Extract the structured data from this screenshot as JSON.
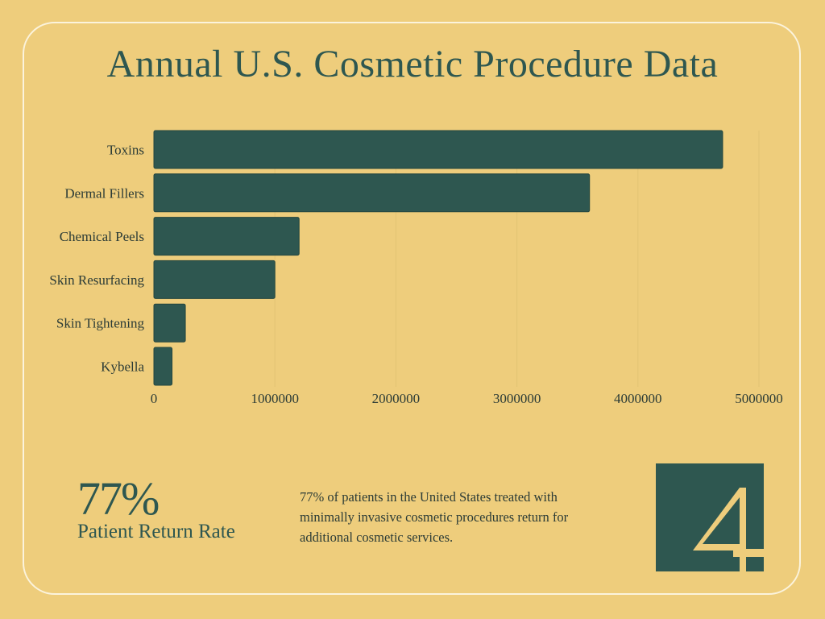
{
  "title": "Annual U.S. Cosmetic Procedure Data",
  "chart_data": {
    "type": "bar",
    "orientation": "horizontal",
    "categories": [
      "Toxins",
      "Dermal Fillers",
      "Chemical Peels",
      "Skin Resurfacing",
      "Skin Tightening",
      "Kybella"
    ],
    "values": [
      4700000,
      3600000,
      1200000,
      1000000,
      260000,
      150000
    ],
    "xlim": [
      0,
      5000000
    ],
    "xticks": [
      "0",
      "1000000",
      "2000000",
      "3000000",
      "4000000",
      "5000000"
    ],
    "grid": true,
    "bar_color": "#2e5750"
  },
  "stat": {
    "value": "77%",
    "label": "Patient Return Rate"
  },
  "description": "77% of patients in the United States treated with minimally invasive cosmetic procedures return for additional cosmetic services.",
  "logo": {
    "text": "4"
  },
  "colors": {
    "background": "#eecd7c",
    "accent": "#2e5750"
  }
}
